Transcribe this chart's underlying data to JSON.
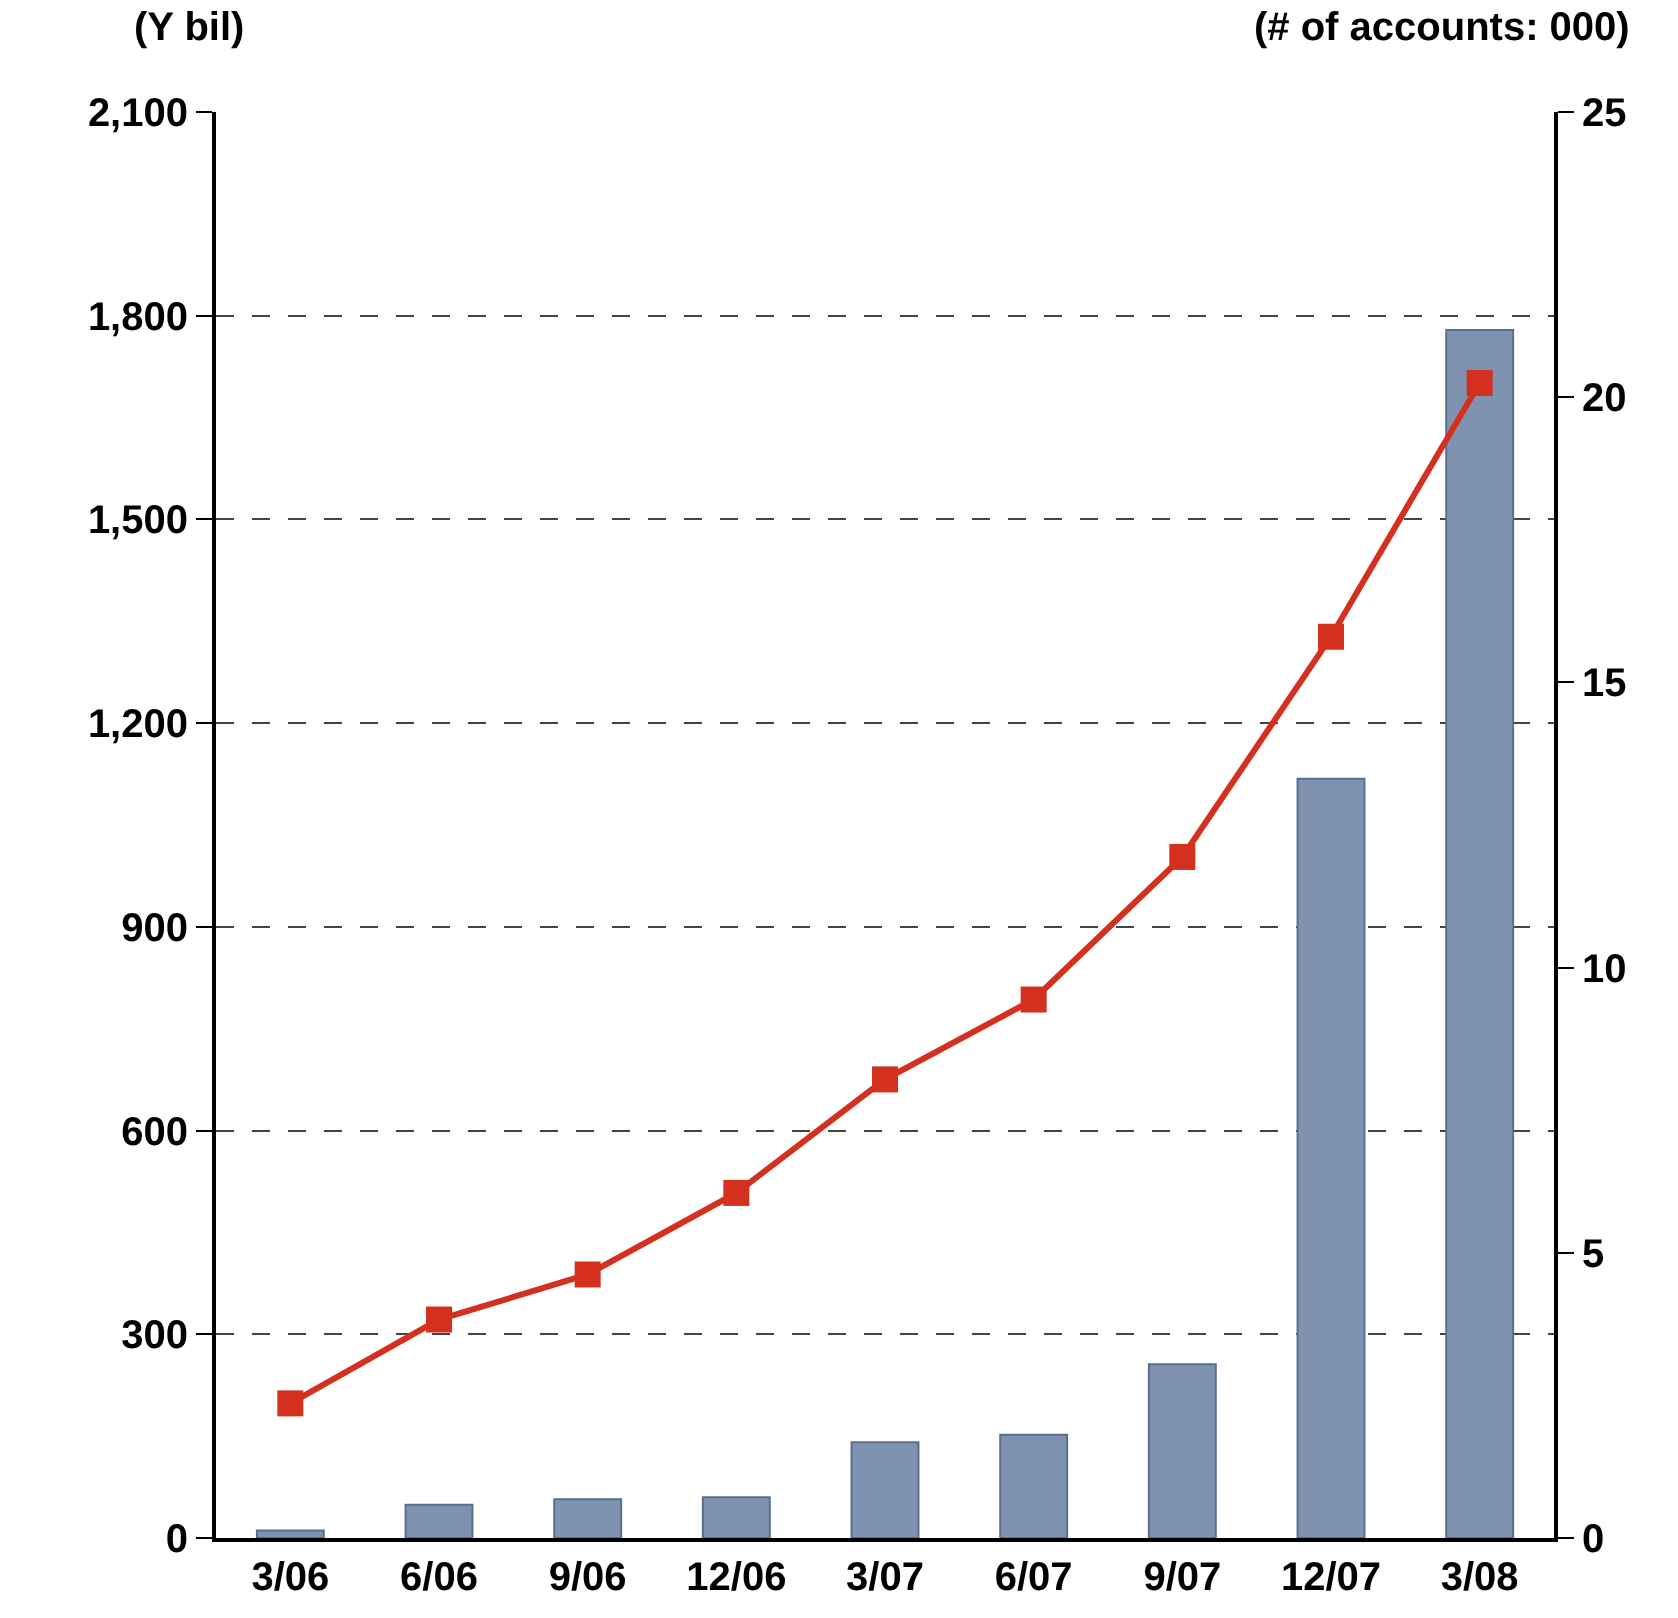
{
  "chart_data": {
    "type": "bar",
    "ylabel": "(Y bil)",
    "y2label": "(# of accounts: 000)",
    "categories": [
      "3/06",
      "6/06",
      "9/06",
      "12/06",
      "3/07",
      "6/07",
      "9/07",
      "12/07",
      "3/08"
    ],
    "series": [
      {
        "color": "#7f93b0",
        "values": [
          11,
          49,
          57,
          60,
          141,
          152,
          256,
          1118,
          1779
        ]
      },
      {
        "type": "line",
        "axis": "y2",
        "color": "#d4301f",
        "values": [
          2.36,
          3.83,
          4.62,
          6.05,
          8.04,
          9.44,
          11.94,
          15.8,
          20.25
        ]
      }
    ],
    "ylim": [
      0,
      2100
    ],
    "yticks": [
      0,
      300,
      600,
      900,
      {
        "value": 1200,
        "label": "1,200"
      },
      {
        "value": 1500,
        "label": "1,500"
      },
      {
        "value": 1800,
        "label": "1,800"
      },
      {
        "value": 2100,
        "label": "2,100"
      }
    ],
    "y2lim": [
      0,
      25
    ],
    "y2ticks": [
      0,
      5,
      10,
      15,
      20,
      25
    ],
    "grid": "y",
    "legend": false,
    "marker": "square",
    "line_style": "solid"
  }
}
